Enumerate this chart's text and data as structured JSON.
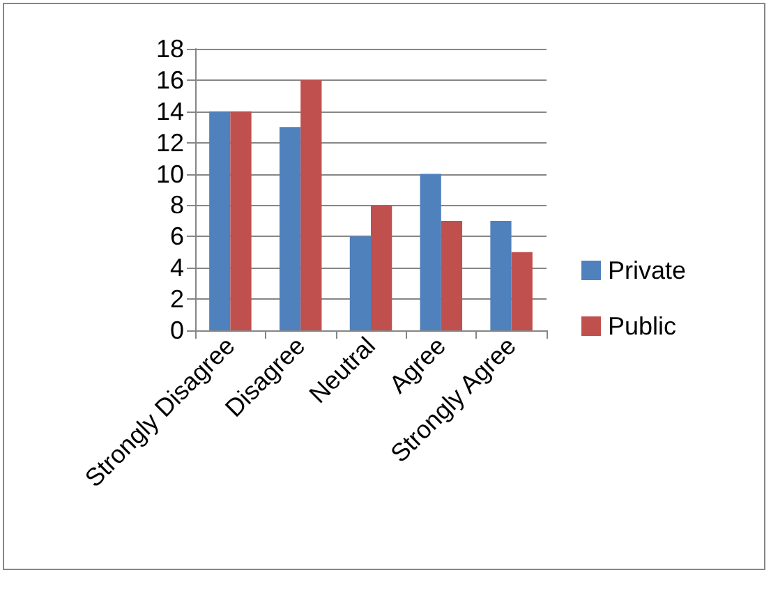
{
  "chart_data": {
    "type": "bar",
    "categories": [
      "Strongly Disagree",
      "Disagree",
      "Neutral",
      "Agree",
      "Strongly Agree"
    ],
    "series": [
      {
        "name": "Private",
        "color": "#4f81bd",
        "values": [
          14,
          13,
          6,
          10,
          7
        ]
      },
      {
        "name": "Public",
        "color": "#c0504d",
        "values": [
          14,
          16,
          8,
          7,
          5
        ]
      }
    ],
    "ylim": [
      0,
      18
    ],
    "yticks": [
      0,
      2,
      4,
      6,
      8,
      10,
      12,
      14,
      16,
      18
    ],
    "grid": "y",
    "legend": "right"
  }
}
